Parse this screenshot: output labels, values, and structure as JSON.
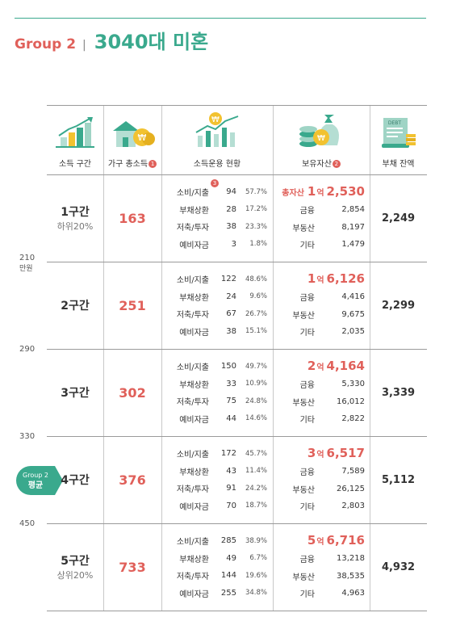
{
  "header": {
    "group": "Group 2",
    "title": "3040대 미혼"
  },
  "columns": {
    "bracket": "소득 구간",
    "income": "가구 총소득",
    "income_note": "1",
    "usage": "소득운용 현황",
    "assets": "보유자산",
    "assets_note": "2",
    "debt": "부채 잔액",
    "pct_note": "3"
  },
  "side": {
    "b1": "210",
    "b1_unit": "만원",
    "b2": "290",
    "b3": "330",
    "b4": "450",
    "avg_tag": "Group 2",
    "avg_tag_sub": "평균"
  },
  "usage_labels": {
    "spend": "소비/지출",
    "repay": "부채상환",
    "save": "저축/투자",
    "reserve": "예비자금"
  },
  "asset_labels": {
    "total_prefix": "총자산",
    "fin": "금융",
    "real": "부동산",
    "etc": "기타",
    "eok": "억"
  },
  "rows": [
    {
      "name": "1구간",
      "sub": "하위20%",
      "income": "163",
      "spend": "94",
      "spend_p": "57.7%",
      "repay": "28",
      "repay_p": "17.2%",
      "save": "38",
      "save_p": "23.3%",
      "reserve": "3",
      "reserve_p": "1.8%",
      "tot_eok": "1",
      "tot_rest": "2,530",
      "fin": "2,854",
      "real": "8,197",
      "etc": "1,479",
      "debt": "2,249"
    },
    {
      "name": "2구간",
      "sub": "",
      "income": "251",
      "spend": "122",
      "spend_p": "48.6%",
      "repay": "24",
      "repay_p": "9.6%",
      "save": "67",
      "save_p": "26.7%",
      "reserve": "38",
      "reserve_p": "15.1%",
      "tot_eok": "1",
      "tot_rest": "6,126",
      "fin": "4,416",
      "real": "9,675",
      "etc": "2,035",
      "debt": "2,299"
    },
    {
      "name": "3구간",
      "sub": "",
      "income": "302",
      "spend": "150",
      "spend_p": "49.7%",
      "repay": "33",
      "repay_p": "10.9%",
      "save": "75",
      "save_p": "24.8%",
      "reserve": "44",
      "reserve_p": "14.6%",
      "tot_eok": "2",
      "tot_rest": "4,164",
      "fin": "5,330",
      "real": "16,012",
      "etc": "2,822",
      "debt": "3,339"
    },
    {
      "name": "4구간",
      "sub": "",
      "income": "376",
      "spend": "172",
      "spend_p": "45.7%",
      "repay": "43",
      "repay_p": "11.4%",
      "save": "91",
      "save_p": "24.2%",
      "reserve": "70",
      "reserve_p": "18.7%",
      "tot_eok": "3",
      "tot_rest": "6,517",
      "fin": "7,589",
      "real": "26,125",
      "etc": "2,803",
      "debt": "5,112"
    },
    {
      "name": "5구간",
      "sub": "상위20%",
      "income": "733",
      "spend": "285",
      "spend_p": "38.9%",
      "repay": "49",
      "repay_p": "6.7%",
      "save": "144",
      "save_p": "19.6%",
      "reserve": "255",
      "reserve_p": "34.8%",
      "tot_eok": "5",
      "tot_rest": "6,716",
      "fin": "13,218",
      "real": "38,535",
      "etc": "4,963",
      "debt": "4,932"
    }
  ],
  "colors": {
    "accent_green": "#3aa98d",
    "accent_red": "#e0605a",
    "coin_yellow": "#f2c230"
  },
  "icons": [
    "bar-chart-arrow-icon",
    "house-coins-icon",
    "line-chart-coin-icon",
    "money-bag-coins-icon",
    "debt-document-icon"
  ],
  "debt_icon_text": "DEBT"
}
